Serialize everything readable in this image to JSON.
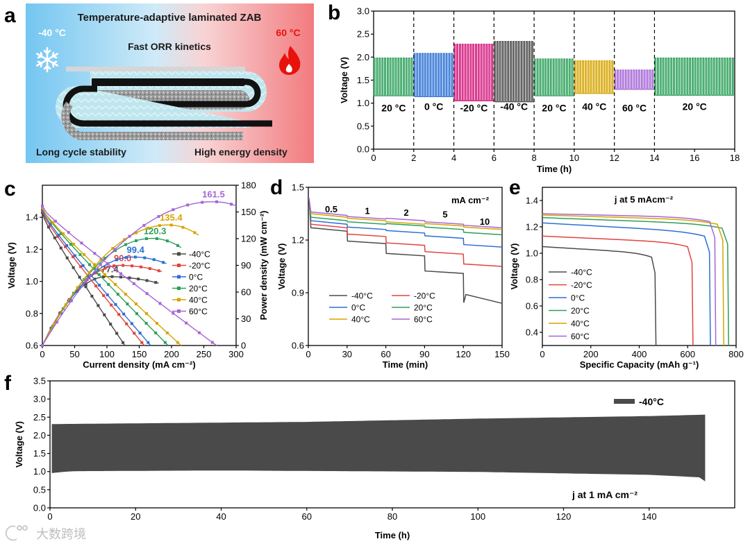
{
  "panel_labels": [
    "a",
    "b",
    "c",
    "d",
    "e",
    "f"
  ],
  "schematic": {
    "title": "Temperature-adaptive laminated ZAB",
    "cold": "-40 °C",
    "hot": "60 °C",
    "kinetics": "Fast ORR kinetics",
    "left_bottom": "Long cycle stability",
    "right_bottom": "High energy density",
    "cold_color": "#74c6f1",
    "hot_color": "#f27b7f",
    "snowflake_icon": "snowflake-icon",
    "flame_icon": "flame-icon"
  },
  "watermark": "大数跨境",
  "chart_data": [
    {
      "id": "b",
      "type": "line",
      "title": "",
      "xlabel": "Time (h)",
      "ylabel": "Voltage (V)",
      "xlim": [
        0,
        18
      ],
      "ylim": [
        0,
        3.0
      ],
      "xticks": [
        "0",
        "2",
        "4",
        "6",
        "8",
        "10",
        "12",
        "14",
        "16",
        "18"
      ],
      "yticks": [
        "0.0",
        "0.5",
        "1.0",
        "1.5",
        "2.0",
        "2.5",
        "3.0"
      ],
      "grid": false,
      "segments": [
        {
          "label": "20 °C",
          "start": 0,
          "end": 2,
          "charge": 1.98,
          "discharge": 1.16,
          "color": "#2ca05a"
        },
        {
          "label": "0 °C",
          "start": 2,
          "end": 4,
          "charge": 2.08,
          "discharge": 1.14,
          "color": "#2b6fd4"
        },
        {
          "label": "-20 °C",
          "start": 4,
          "end": 6,
          "charge": 2.28,
          "discharge": 1.05,
          "color": "#d4157a"
        },
        {
          "label": "-40 °C",
          "start": 6,
          "end": 8,
          "charge": 2.34,
          "discharge": 1.03,
          "color": "#4a4a4a"
        },
        {
          "label": "20 °C",
          "start": 8,
          "end": 10,
          "charge": 1.96,
          "discharge": 1.16,
          "color": "#2ca05a"
        },
        {
          "label": "40 °C",
          "start": 10,
          "end": 12,
          "charge": 1.92,
          "discharge": 1.21,
          "color": "#d6a400"
        },
        {
          "label": "60 °C",
          "start": 12,
          "end": 14,
          "charge": 1.72,
          "discharge": 1.3,
          "color": "#a565d6"
        },
        {
          "label": "20 °C",
          "start": 14,
          "end": 18,
          "charge": 1.98,
          "discharge": 1.17,
          "color": "#2ca05a"
        }
      ],
      "dividers": [
        2,
        4,
        6,
        8,
        10,
        12,
        14
      ]
    },
    {
      "id": "c",
      "type": "line",
      "xlabel": "Current density (mA cm⁻²)",
      "ylabel": "Voltage (V)",
      "ylabel_right": "Power density (mW cm⁻²)",
      "xlim": [
        0,
        300
      ],
      "ylim": [
        0.6,
        1.6
      ],
      "ylim_right": [
        0,
        180
      ],
      "xticks": [
        "0",
        "50",
        "100",
        "150",
        "200",
        "250",
        "300"
      ],
      "yticks": [
        "0.6",
        "0.8",
        "1.0",
        "1.2",
        "1.4"
      ],
      "yticks_right": [
        "0",
        "30",
        "60",
        "90",
        "120",
        "150",
        "180"
      ],
      "legend_position": "middle-right",
      "series": [
        {
          "name": "-40°C",
          "color": "#4a4a4a",
          "v0": 1.43,
          "jmax": 128,
          "ppeak": 77.4,
          "jpeak": 100,
          "pend_j": 180,
          "pend": 70
        },
        {
          "name": "-20°C",
          "color": "#e0443e",
          "v0": 1.44,
          "jmax": 158,
          "ppeak": 90.0,
          "jpeak": 120,
          "pend_j": 185,
          "pend": 83
        },
        {
          "name": "0°C",
          "color": "#2b6fd4",
          "v0": 1.45,
          "jmax": 168,
          "ppeak": 99.4,
          "jpeak": 140,
          "pend_j": 192,
          "pend": 92
        },
        {
          "name": "20°C",
          "color": "#2ca05a",
          "v0": 1.46,
          "jmax": 195,
          "ppeak": 120.3,
          "jpeak": 170,
          "pend_j": 215,
          "pend": 110
        },
        {
          "name": "40°C",
          "color": "#d6a400",
          "v0": 1.46,
          "jmax": 215,
          "ppeak": 135.4,
          "jpeak": 195,
          "pend_j": 242,
          "pend": 124
        },
        {
          "name": "60°C",
          "color": "#a565d6",
          "v0": 1.47,
          "jmax": 270,
          "ppeak": 161.5,
          "jpeak": 265,
          "pend_j": 300,
          "pend": 157
        }
      ],
      "peak_labels": [
        "77.4",
        "90.0",
        "99.4",
        "120.3",
        "135.4",
        "161.5"
      ]
    },
    {
      "id": "d",
      "type": "line",
      "xlabel": "Time (min)",
      "ylabel": "Voltage (V)",
      "xlim": [
        0,
        150
      ],
      "ylim": [
        0.6,
        1.5
      ],
      "xticks": [
        "0",
        "30",
        "60",
        "90",
        "120",
        "150"
      ],
      "yticks": [
        "0.6",
        "0.9",
        "1.2",
        "1.5"
      ],
      "unit_label": "mA cm⁻²",
      "current_steps": [
        "0.5",
        "1",
        "2",
        "5",
        "10"
      ],
      "legend_position": "bottom",
      "series": [
        {
          "name": "-40°C",
          "color": "#4a4a4a",
          "levels": [
            1.26,
            1.19,
            1.12,
            1.02,
            0.84
          ]
        },
        {
          "name": "-20°C",
          "color": "#e0443e",
          "levels": [
            1.28,
            1.23,
            1.18,
            1.13,
            1.06
          ]
        },
        {
          "name": "0°C",
          "color": "#2b6fd4",
          "levels": [
            1.3,
            1.27,
            1.25,
            1.22,
            1.17
          ]
        },
        {
          "name": "20°C",
          "color": "#2ca05a",
          "levels": [
            1.32,
            1.3,
            1.29,
            1.27,
            1.24
          ]
        },
        {
          "name": "40°C",
          "color": "#d6a400",
          "levels": [
            1.34,
            1.32,
            1.3,
            1.29,
            1.27
          ]
        },
        {
          "name": "60°C",
          "color": "#a565d6",
          "levels": [
            1.35,
            1.33,
            1.32,
            1.3,
            1.28
          ]
        }
      ]
    },
    {
      "id": "e",
      "type": "line",
      "xlabel": "Specific Capacity (mAh g⁻¹)",
      "ylabel": "Voltage (V)",
      "xlim": [
        0,
        800
      ],
      "ylim": [
        0.3,
        1.5
      ],
      "xticks": [
        "0",
        "200",
        "400",
        "600",
        "800"
      ],
      "yticks": [
        "0.4",
        "0.6",
        "0.8",
        "1.0",
        "1.2",
        "1.4"
      ],
      "annotation": "j at 5 mAcm⁻²",
      "legend_position": "bottom-left",
      "series": [
        {
          "name": "-40°C",
          "color": "#4a4a4a",
          "v_start": 1.05,
          "v_end": 1.0,
          "capacity": 465
        },
        {
          "name": "-20°C",
          "color": "#e0443e",
          "v_start": 1.13,
          "v_end": 1.08,
          "capacity": 618
        },
        {
          "name": "0°C",
          "color": "#2b6fd4",
          "v_start": 1.23,
          "v_end": 1.16,
          "capacity": 690
        },
        {
          "name": "20°C",
          "color": "#2ca05a",
          "v_start": 1.27,
          "v_end": 1.22,
          "capacity": 765
        },
        {
          "name": "40°C",
          "color": "#d6a400",
          "v_start": 1.29,
          "v_end": 1.25,
          "capacity": 745
        },
        {
          "name": "60°C",
          "color": "#a565d6",
          "v_start": 1.3,
          "v_end": 1.27,
          "capacity": 712
        }
      ]
    },
    {
      "id": "f",
      "type": "area",
      "xlabel": "Time (h)",
      "ylabel": "Voltage (V)",
      "xlim": [
        0,
        160
      ],
      "ylim": [
        0.0,
        3.5
      ],
      "xticks": [
        "0",
        "20",
        "40",
        "60",
        "80",
        "100",
        "120",
        "140"
      ],
      "yticks": [
        "0.0",
        "0.5",
        "1.0",
        "1.5",
        "2.0",
        "2.5",
        "3.0",
        "3.5"
      ],
      "annotation": "j at 1 mA cm⁻²",
      "legend_position": "top-right",
      "series": [
        {
          "name": "-40°C",
          "color": "#4a4a4a",
          "upper": [
            [
              0.5,
              2.3
            ],
            [
              20,
              2.32
            ],
            [
              60,
              2.36
            ],
            [
              100,
              2.45
            ],
            [
              140,
              2.52
            ],
            [
              153,
              2.56
            ]
          ],
          "lower": [
            [
              0.5,
              0.97
            ],
            [
              5,
              1.02
            ],
            [
              40,
              1.04
            ],
            [
              100,
              1.0
            ],
            [
              140,
              0.92
            ],
            [
              152,
              0.85
            ],
            [
              153,
              0.75
            ]
          ]
        }
      ],
      "x_end": 153
    }
  ]
}
